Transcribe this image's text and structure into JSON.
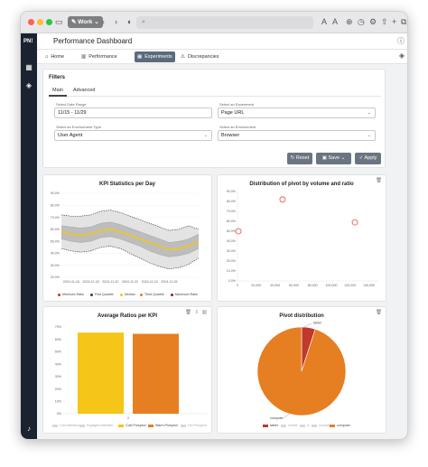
{
  "browser": {
    "work_label": "Work",
    "address_text": ""
  },
  "app": {
    "logo": "PN!",
    "title": "Performance Dashboard"
  },
  "tabs": [
    {
      "label": "Home",
      "icon": "home-icon",
      "active": false
    },
    {
      "label": "Performance",
      "icon": "chart-icon",
      "active": false
    },
    {
      "label": "Experiments",
      "icon": "grid-icon",
      "active": true
    },
    {
      "label": "Discrepancies",
      "icon": "warning-icon",
      "active": false
    }
  ],
  "filters": {
    "title": "Filters",
    "subtabs": [
      "Main",
      "Advanced"
    ],
    "date_label": "Select Date Range",
    "date_value": "11/15 - 11/29",
    "experiment_label": "Select an Experiment",
    "experiment_value": "Page URL",
    "env_type_label": "Select an Environment Type",
    "env_type_value": "User Agent",
    "env_label": "Select an Environment",
    "env_value": "Browser",
    "reset_label": "Reset",
    "save_label": "Save",
    "apply_label": "Apply"
  },
  "kpi_chart": {
    "title": "KPI Statistics per Day",
    "y_ticks": [
      "90.0%",
      "80.0%",
      "70.0%",
      "60.0%",
      "50.0%",
      "40.0%",
      "30.0%",
      "20.0%"
    ],
    "x_ticks": [
      "2024-11-16",
      "2024-11-18",
      "2024-11-20",
      "2024-11-22",
      "2024-11-24",
      "2024-11-26"
    ],
    "legend": [
      {
        "name": "Minimum Ratio",
        "color": "#c0392b"
      },
      {
        "name": "First Quartile",
        "color": "#2c3e50"
      },
      {
        "name": "Median",
        "color": "#f5c518"
      },
      {
        "name": "Third Quartile",
        "color": "#e67e22"
      },
      {
        "name": "Maximum Ratio",
        "color": "#8e1b3b"
      }
    ]
  },
  "scatter_chart": {
    "title": "Distribution of pivot by volume and ratio",
    "y_ticks": [
      "90.0%",
      "80.0%",
      "70.0%",
      "60.0%",
      "50.0%",
      "40.0%",
      "30.0%",
      "20.0%",
      "10.0%",
      "0.0%"
    ],
    "x_ticks": [
      "0",
      "20,000",
      "40,000",
      "60,000",
      "80,000",
      "100,000",
      "120,000",
      "140,000"
    ]
  },
  "bar_chart": {
    "title": "Average Ratios per KPI",
    "y_ticks": [
      "70%",
      "60%",
      "50%",
      "40%",
      "30%",
      "20%",
      "10%",
      "0%"
    ],
    "x_label": "0",
    "legend": [
      {
        "name": "Lost Attention",
        "color": "#d8d8d8"
      },
      {
        "name": "Engaged Attention",
        "color": "#d8d8d8"
      },
      {
        "name": "Cold Prospect",
        "color": "#f5c518"
      },
      {
        "name": "Warm Prospect",
        "color": "#e67e22"
      },
      {
        "name": "Hot Prospect",
        "color": "#d8d8d8"
      }
    ]
  },
  "pie_chart": {
    "title": "Pivot distribution",
    "label_big": "computer",
    "label_small": "tablet",
    "legend": [
      {
        "name": "tablet",
        "color": "#c0392b"
      },
      {
        "name": "mobile",
        "color": "#d8d8d8"
      },
      {
        "name": "tv",
        "color": "#d8d8d8"
      },
      {
        "name": "console",
        "color": "#d8d8d8"
      },
      {
        "name": "computer",
        "color": "#e67e22"
      }
    ]
  },
  "chart_data": [
    {
      "type": "area",
      "title": "KPI Statistics per Day",
      "x": [
        "2024-11-15",
        "2024-11-16",
        "2024-11-17",
        "2024-11-18",
        "2024-11-19",
        "2024-11-20",
        "2024-11-21",
        "2024-11-22",
        "2024-11-23",
        "2024-11-24",
        "2024-11-25",
        "2024-11-26",
        "2024-11-27",
        "2024-11-28",
        "2024-11-29"
      ],
      "ylim": [
        0.2,
        0.9
      ],
      "series": [
        {
          "name": "Minimum Ratio",
          "values": [
            0.44,
            0.42,
            0.41,
            0.42,
            0.45,
            0.46,
            0.44,
            0.4,
            0.36,
            0.32,
            0.29,
            0.27,
            0.28,
            0.31,
            0.36
          ]
        },
        {
          "name": "First Quartile",
          "values": [
            0.52,
            0.5,
            0.49,
            0.5,
            0.53,
            0.54,
            0.52,
            0.49,
            0.46,
            0.42,
            0.39,
            0.37,
            0.38,
            0.4,
            0.44
          ]
        },
        {
          "name": "Median",
          "values": [
            0.58,
            0.56,
            0.55,
            0.56,
            0.59,
            0.6,
            0.58,
            0.55,
            0.52,
            0.49,
            0.46,
            0.43,
            0.44,
            0.46,
            0.5
          ]
        },
        {
          "name": "Third Quartile",
          "values": [
            0.63,
            0.62,
            0.61,
            0.62,
            0.65,
            0.66,
            0.64,
            0.61,
            0.58,
            0.55,
            0.52,
            0.49,
            0.5,
            0.52,
            0.56
          ]
        },
        {
          "name": "Maximum Ratio",
          "values": [
            0.72,
            0.71,
            0.71,
            0.72,
            0.75,
            0.76,
            0.74,
            0.71,
            0.68,
            0.65,
            0.62,
            0.59,
            0.6,
            0.63,
            0.6
          ]
        }
      ]
    },
    {
      "type": "scatter",
      "title": "Distribution of pivot by volume and ratio",
      "xlim": [
        0,
        150000
      ],
      "ylim": [
        0,
        0.9
      ],
      "points": [
        {
          "x": 1000,
          "y": 0.5
        },
        {
          "x": 48000,
          "y": 0.82
        },
        {
          "x": 125000,
          "y": 0.59
        }
      ]
    },
    {
      "type": "bar",
      "title": "Average Ratios per KPI",
      "categories": [
        "0"
      ],
      "ylim": [
        0,
        0.7
      ],
      "series": [
        {
          "name": "Cold Prospect",
          "values": [
            0.655
          ]
        },
        {
          "name": "Warm Prospect",
          "values": [
            0.645
          ]
        }
      ]
    },
    {
      "type": "pie",
      "title": "Pivot distribution",
      "labels": [
        "tablet",
        "mobile",
        "tv",
        "console",
        "computer"
      ],
      "values": [
        0.05,
        0,
        0,
        0,
        0.95
      ]
    }
  ]
}
